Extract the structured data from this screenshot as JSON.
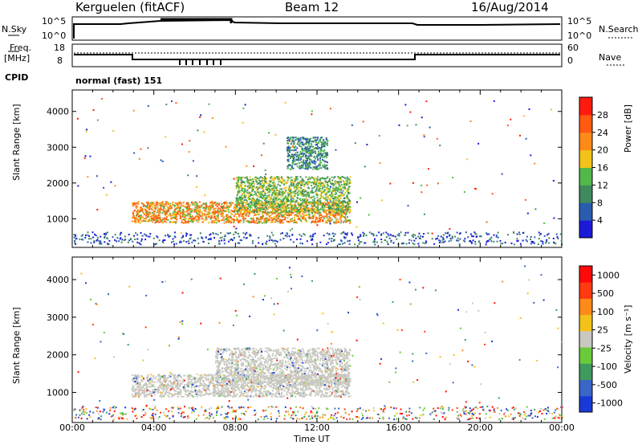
{
  "header": {
    "radar": "Kerguelen (fitACF)",
    "beam": "Beam 12",
    "date": "16/Aug/2014"
  },
  "noise_panel": {
    "left_label": "N.Sky",
    "right_label": "N.Search",
    "tick_top": "10^5",
    "tick_bottom": "10^0"
  },
  "freq_panel": {
    "left_label_1": "Freq.",
    "left_label_2": "[MHz]",
    "left_ticks": [
      "18",
      "8"
    ],
    "right_label": "Nave",
    "right_ticks": [
      "60",
      "0"
    ],
    "cpid_label": "CPID",
    "cpid_value": "normal (fast) 151"
  },
  "chart_data": [
    {
      "type": "heatmap",
      "name": "power",
      "ylabel": "Slant Range [km]",
      "y_ticks": [
        "1000",
        "2000",
        "3000",
        "4000"
      ],
      "ylim": [
        200,
        4600
      ],
      "xlim": [
        0,
        24
      ],
      "colorbar_label": "Power [dB]",
      "colorbar_ticks": [
        "4",
        "8",
        "12",
        "16",
        "20",
        "24",
        "28"
      ],
      "colorbar_colors": [
        "#1a1ad8",
        "#2a5cb0",
        "#3f8a5e",
        "#52b84a",
        "#f2c21a",
        "#ff8a1a",
        "#ff5a10",
        "#ff1a10"
      ],
      "regions": [
        {
          "x0": 2.9,
          "x1": 13.6,
          "y0": 900,
          "y1": 1500,
          "level": "high"
        },
        {
          "x0": 8.0,
          "x1": 13.6,
          "y0": 1200,
          "y1": 2200,
          "level": "mid"
        },
        {
          "x0": 10.5,
          "x1": 12.5,
          "y0": 2400,
          "y1": 3300,
          "level": "low"
        }
      ]
    },
    {
      "type": "heatmap",
      "name": "velocity",
      "ylabel": "Slant Range [km]",
      "y_ticks": [
        "1000",
        "2000",
        "3000",
        "4000"
      ],
      "ylim": [
        200,
        4600
      ],
      "xlim": [
        0,
        24
      ],
      "xlabel": "Time UT",
      "x_ticks": [
        "00:00",
        "04:00",
        "08:00",
        "12:00",
        "16:00",
        "20:00",
        "00:00"
      ],
      "colorbar_label": "Velocity [m s⁻¹]",
      "colorbar_ticks": [
        "1000",
        "500",
        "100",
        "25",
        "-25",
        "-100",
        "-500",
        "-1000"
      ],
      "colorbar_colors": [
        "#1a3ad8",
        "#3a66c8",
        "#3f9a5e",
        "#6acb3a",
        "#c8c8c0",
        "#f2c21a",
        "#ff8a1a",
        "#ff3a10",
        "#ff0a0a"
      ],
      "regions": [
        {
          "x0": 2.9,
          "x1": 13.6,
          "y0": 900,
          "y1": 1500,
          "level": "ground"
        },
        {
          "x0": 7.0,
          "x1": 13.6,
          "y0": 1200,
          "y1": 2200,
          "level": "ground"
        }
      ]
    }
  ]
}
